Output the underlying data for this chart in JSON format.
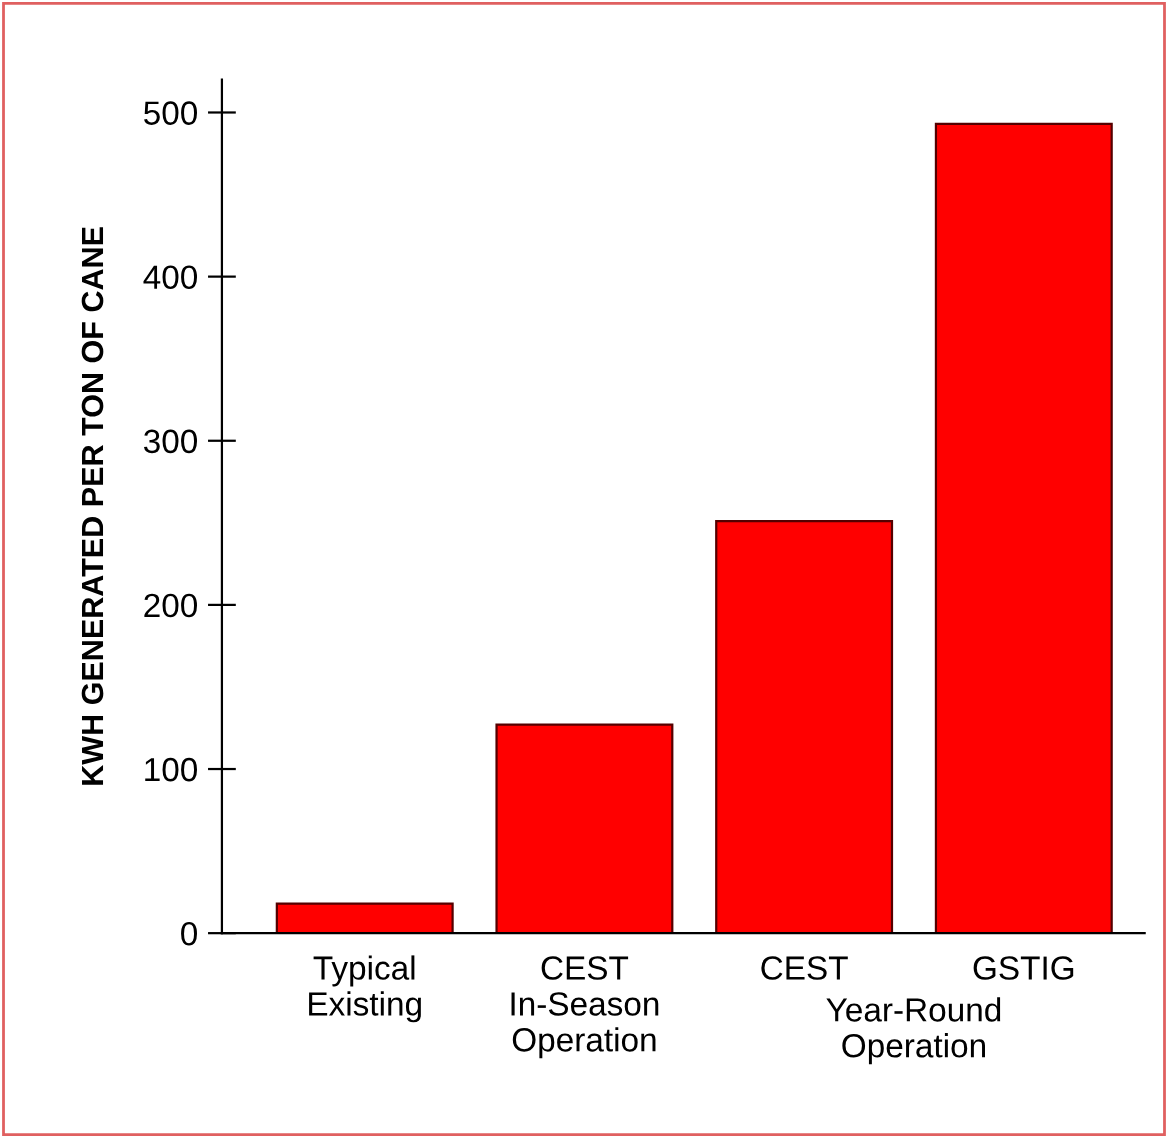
{
  "chart_data": {
    "type": "bar",
    "ylabel": "KWH GENERATED PER TON OF CANE",
    "categories": [
      "Typical\nExisting",
      "CEST\nIn-Season\nOperation",
      "CEST",
      "GSTIG"
    ],
    "values": [
      18,
      127,
      251,
      493
    ],
    "color": "#ff0000",
    "ylim": [
      0,
      520
    ],
    "yticks": [
      0,
      100,
      200,
      300,
      400,
      500
    ],
    "grid": false,
    "annotations": [
      "Year-Round\nOperation"
    ]
  }
}
